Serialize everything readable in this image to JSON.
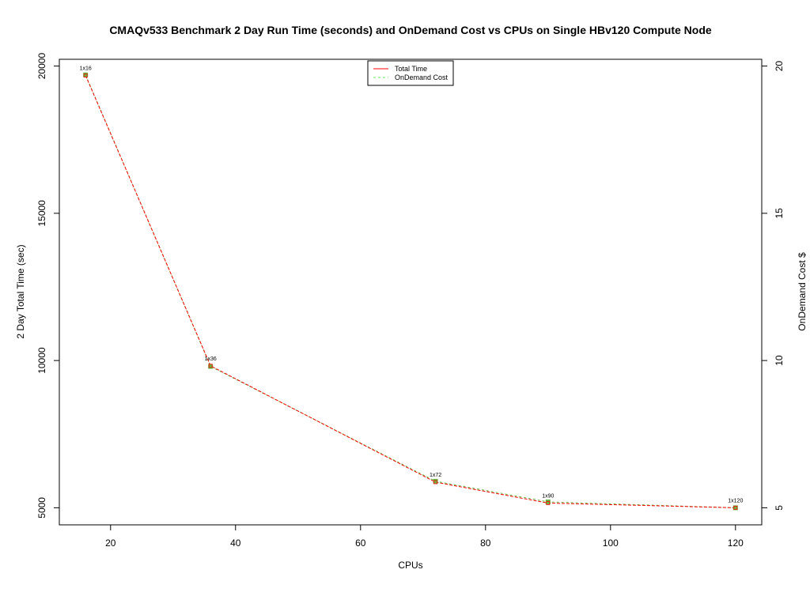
{
  "chart_data": {
    "type": "line",
    "title": "CMAQv533 Benchmark 2 Day Run Time (seconds) and OnDemand Cost vs CPUs on Single HBv120 Compute Node",
    "xlabel": "CPUs",
    "ylabel": "2 Day Total Time (sec)",
    "y2label": "OnDemand Cost $",
    "x": [
      16,
      36,
      72,
      90,
      120
    ],
    "point_labels": [
      "1x16",
      "1x36",
      "1x72",
      "1x90",
      "1x120"
    ],
    "series": [
      {
        "name": "Total Time",
        "axis": "left",
        "color": "#ff0000",
        "values": [
          19680,
          9820,
          5870,
          5160,
          5000
        ]
      },
      {
        "name": "OnDemand Cost",
        "axis": "right",
        "color": "#66bb44",
        "values": [
          19.7,
          9.8,
          5.9,
          5.2,
          5.0
        ]
      }
    ],
    "xlim": [
      11.8,
      124.2
    ],
    "ylim": [
      4420,
      20230
    ],
    "y2lim": [
      4.42,
      20.23
    ],
    "x_ticks": [
      "20",
      "40",
      "60",
      "80",
      "100",
      "120"
    ],
    "y_ticks": [
      "5000",
      "10000",
      "15000",
      "20000"
    ],
    "y2_ticks": [
      "5",
      "10",
      "15",
      "20"
    ],
    "legend_position": "top-center",
    "grid": false
  }
}
